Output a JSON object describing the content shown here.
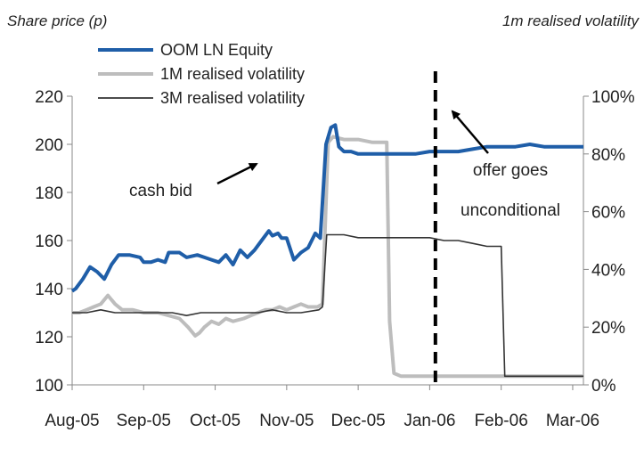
{
  "chart_data": {
    "type": "line",
    "left_axis_label": "Share price  (p)",
    "right_axis_label": "1m realised volatility",
    "x_tick_labels": [
      "Aug-05",
      "Sep-05",
      "Oct-05",
      "Nov-05",
      "Dec-05",
      "Jan-06",
      "Feb-06",
      "Mar-06"
    ],
    "y_left": {
      "min": 100,
      "max": 220,
      "ticks": [
        "100",
        "120",
        "140",
        "160",
        "180",
        "200",
        "220"
      ]
    },
    "y_right": {
      "min": 0,
      "max": 100,
      "ticks": [
        "0%",
        "20%",
        "40%",
        "60%",
        "80%",
        "100%"
      ]
    },
    "grid": false,
    "legend_position": "top-left",
    "series": [
      {
        "name": "OOM LN Equity",
        "axis": "left",
        "color": "#1f5ea8",
        "points": [
          [
            0.0,
            139
          ],
          [
            0.05,
            140
          ],
          [
            0.15,
            144
          ],
          [
            0.25,
            149
          ],
          [
            0.35,
            147
          ],
          [
            0.45,
            144
          ],
          [
            0.55,
            150
          ],
          [
            0.65,
            154
          ],
          [
            0.8,
            154
          ],
          [
            0.95,
            153
          ],
          [
            1.0,
            151
          ],
          [
            1.1,
            151
          ],
          [
            1.2,
            152
          ],
          [
            1.3,
            151
          ],
          [
            1.35,
            155
          ],
          [
            1.5,
            155
          ],
          [
            1.6,
            153
          ],
          [
            1.75,
            154
          ],
          [
            1.85,
            153
          ],
          [
            1.95,
            152
          ],
          [
            2.05,
            151
          ],
          [
            2.15,
            154
          ],
          [
            2.25,
            150
          ],
          [
            2.35,
            156
          ],
          [
            2.45,
            153
          ],
          [
            2.55,
            156
          ],
          [
            2.65,
            160
          ],
          [
            2.75,
            164
          ],
          [
            2.8,
            162
          ],
          [
            2.88,
            163
          ],
          [
            2.93,
            161
          ],
          [
            3.0,
            161
          ],
          [
            3.1,
            152
          ],
          [
            3.2,
            155
          ],
          [
            3.3,
            157
          ],
          [
            3.4,
            163
          ],
          [
            3.47,
            161
          ],
          [
            3.55,
            200
          ],
          [
            3.62,
            207
          ],
          [
            3.68,
            208
          ],
          [
            3.73,
            199
          ],
          [
            3.8,
            197
          ],
          [
            3.9,
            197
          ],
          [
            4.0,
            196
          ],
          [
            4.2,
            196
          ],
          [
            4.4,
            196
          ],
          [
            4.6,
            196
          ],
          [
            4.8,
            196
          ],
          [
            5.0,
            197
          ],
          [
            5.2,
            197
          ],
          [
            5.4,
            197
          ],
          [
            5.6,
            198
          ],
          [
            5.8,
            199
          ],
          [
            6.0,
            199
          ],
          [
            6.2,
            199
          ],
          [
            6.4,
            200
          ],
          [
            6.6,
            199
          ],
          [
            6.8,
            199
          ],
          [
            7.0,
            199
          ],
          [
            7.15,
            199
          ]
        ]
      },
      {
        "name": "1M realised volatility",
        "axis": "right",
        "color": "#bdbdbd",
        "points": [
          [
            0.0,
            25
          ],
          [
            0.1,
            25
          ],
          [
            0.2,
            26
          ],
          [
            0.3,
            27
          ],
          [
            0.4,
            28
          ],
          [
            0.5,
            31
          ],
          [
            0.6,
            28
          ],
          [
            0.7,
            26
          ],
          [
            0.85,
            26
          ],
          [
            1.0,
            25
          ],
          [
            1.2,
            25
          ],
          [
            1.35,
            24
          ],
          [
            1.5,
            23
          ],
          [
            1.62,
            20
          ],
          [
            1.72,
            17
          ],
          [
            1.78,
            18
          ],
          [
            1.85,
            20
          ],
          [
            1.95,
            22
          ],
          [
            2.05,
            21
          ],
          [
            2.15,
            23
          ],
          [
            2.25,
            22
          ],
          [
            2.4,
            23
          ],
          [
            2.5,
            24
          ],
          [
            2.6,
            25
          ],
          [
            2.7,
            26
          ],
          [
            2.8,
            26
          ],
          [
            2.9,
            27
          ],
          [
            3.0,
            26
          ],
          [
            3.1,
            27
          ],
          [
            3.2,
            28
          ],
          [
            3.3,
            27
          ],
          [
            3.43,
            27
          ],
          [
            3.5,
            28
          ],
          [
            3.58,
            84
          ],
          [
            3.65,
            86
          ],
          [
            3.8,
            85
          ],
          [
            4.0,
            85
          ],
          [
            4.2,
            84
          ],
          [
            4.35,
            84
          ],
          [
            4.4,
            84
          ],
          [
            4.44,
            22
          ],
          [
            4.5,
            4
          ],
          [
            4.6,
            3
          ],
          [
            4.8,
            3
          ],
          [
            5.0,
            3
          ],
          [
            5.4,
            3
          ],
          [
            5.6,
            3
          ],
          [
            6.0,
            3
          ],
          [
            6.4,
            3
          ],
          [
            6.8,
            3
          ],
          [
            7.15,
            3
          ]
        ]
      },
      {
        "name": "3M realised volatility",
        "axis": "right",
        "color": "#333333",
        "points": [
          [
            0.0,
            25
          ],
          [
            0.2,
            25
          ],
          [
            0.4,
            26
          ],
          [
            0.6,
            25
          ],
          [
            0.8,
            25
          ],
          [
            1.0,
            25
          ],
          [
            1.2,
            25
          ],
          [
            1.4,
            25
          ],
          [
            1.6,
            24
          ],
          [
            1.8,
            25
          ],
          [
            2.0,
            25
          ],
          [
            2.2,
            25
          ],
          [
            2.4,
            25
          ],
          [
            2.6,
            25
          ],
          [
            2.8,
            26
          ],
          [
            3.0,
            25
          ],
          [
            3.2,
            25
          ],
          [
            3.45,
            26
          ],
          [
            3.5,
            27
          ],
          [
            3.56,
            52
          ],
          [
            3.65,
            52
          ],
          [
            3.8,
            52
          ],
          [
            4.0,
            51
          ],
          [
            4.2,
            51
          ],
          [
            4.5,
            51
          ],
          [
            4.8,
            51
          ],
          [
            5.0,
            51
          ],
          [
            5.2,
            50
          ],
          [
            5.4,
            50
          ],
          [
            5.6,
            49
          ],
          [
            5.8,
            48
          ],
          [
            6.0,
            48
          ],
          [
            6.05,
            3
          ],
          [
            6.2,
            3
          ],
          [
            6.6,
            3
          ],
          [
            7.0,
            3
          ],
          [
            7.15,
            3
          ]
        ]
      }
    ],
    "annotations": [
      {
        "text": "cash bid"
      },
      {
        "text": "offer goes"
      },
      {
        "text": "unconditional"
      }
    ]
  }
}
